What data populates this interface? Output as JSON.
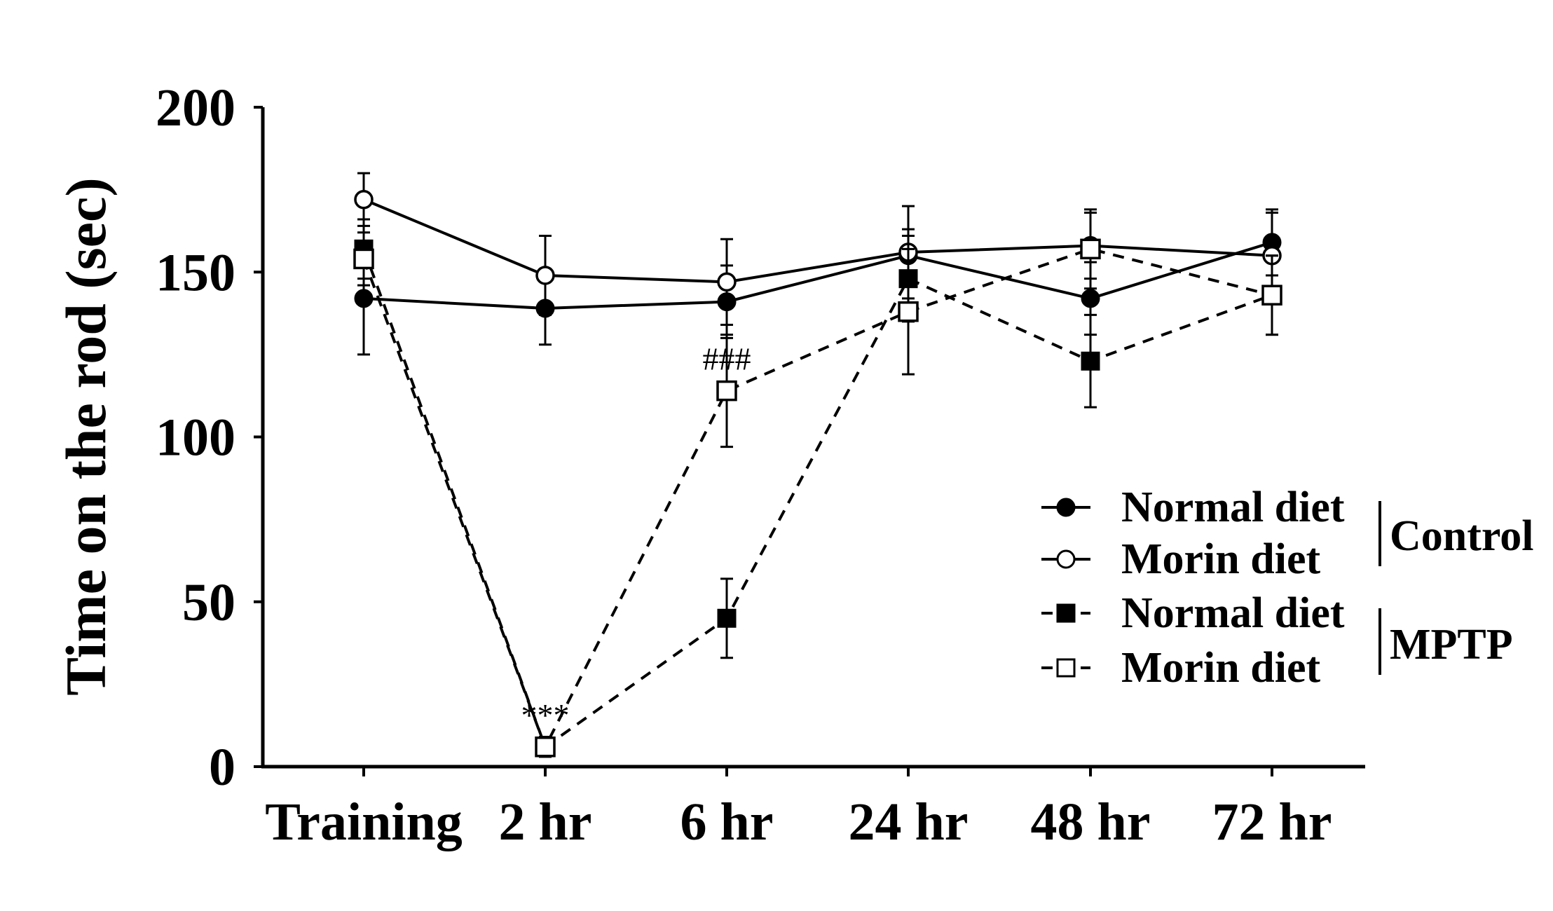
{
  "chart_data": {
    "type": "line",
    "title": "",
    "xlabel": "",
    "ylabel": "Time on the rod (sec)",
    "categories": [
      "Training",
      "2 hr",
      "6 hr",
      "24 hr",
      "48 hr",
      "72 hr"
    ],
    "yticks": [
      "0",
      "50",
      "100",
      "150",
      "200"
    ],
    "ylim": [
      0,
      200
    ],
    "grid": false,
    "legend_position": "right",
    "series": [
      {
        "name": "Normal diet",
        "group": "Control",
        "marker": "filled-circle",
        "line": "solid",
        "values": [
          142,
          139,
          141,
          155,
          142,
          159
        ],
        "errors": [
          17,
          11,
          11,
          8,
          11,
          10
        ]
      },
      {
        "name": "Morin diet",
        "group": "Control",
        "marker": "open-circle",
        "line": "solid",
        "values": [
          172,
          149,
          147,
          156,
          158,
          155
        ],
        "errors": [
          8,
          12,
          13,
          14,
          10,
          13
        ]
      },
      {
        "name": "Normal diet",
        "group": "MPTP",
        "marker": "filled-square",
        "line": "dashed",
        "values": [
          157,
          6,
          45,
          148,
          123,
          143
        ],
        "errors": [
          9,
          3,
          12,
          13,
          14,
          12
        ]
      },
      {
        "name": "Morin diet",
        "group": "MPTP",
        "marker": "open-square",
        "line": "dashed",
        "values": [
          154,
          6,
          114,
          138,
          157,
          143
        ],
        "errors": [
          8,
          3,
          17,
          19,
          12,
          12
        ]
      }
    ],
    "groups": [
      "Control",
      "MPTP"
    ],
    "annotations": [
      {
        "text": "***",
        "category": "2 hr",
        "y": 6
      },
      {
        "text": "###",
        "category": "6 hr",
        "y": 114
      }
    ]
  }
}
